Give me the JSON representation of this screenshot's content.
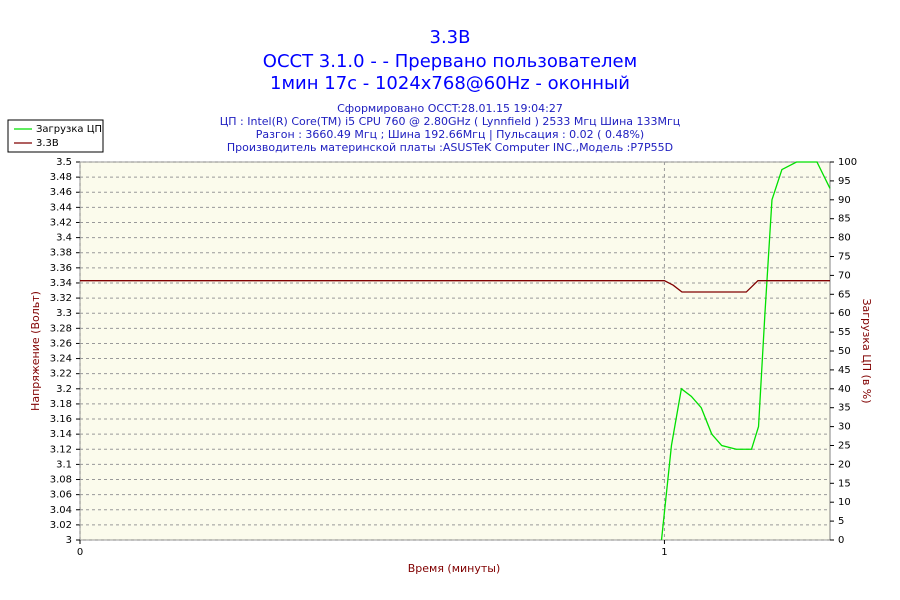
{
  "chart_data": {
    "type": "line",
    "title": "3.3В",
    "subtitle_lines": [
      "OCCT 3.1.0 -  - Прервано пользователем",
      "1мин 17с - 1024x768@60Hz - оконный"
    ],
    "info_lines": [
      "Сформировано OCCT:28.01.15 19:04:27",
      "ЦП : Intel(R) Core(TM) i5 CPU 760 @ 2.80GHz ( Lynnfield ) 2533 Мгц Шина 133Мгц",
      "Разгон : 3660.49 Мгц ; Шина 192.66Мгц | Пульсация : 0.02 ( 0.48%)",
      "Производитель материнской платы :ASUSTeK Computer INC.,Модель :P7P55D"
    ],
    "x_label": "Время (минуты)",
    "y_label": "Напряжение (Вольт)",
    "y2_label": "Загрузка ЦП (в %)",
    "xlim": [
      0,
      1.2833
    ],
    "xticks": [
      0,
      1
    ],
    "ylim": [
      3,
      3.5
    ],
    "yticks": [
      3,
      3.02,
      3.04,
      3.06,
      3.08,
      3.1,
      3.12,
      3.14,
      3.16,
      3.18,
      3.2,
      3.22,
      3.24,
      3.26,
      3.28,
      3.3,
      3.32,
      3.34,
      3.36,
      3.38,
      3.4,
      3.42,
      3.44,
      3.46,
      3.48,
      3.5
    ],
    "y2lim": [
      0,
      100
    ],
    "y2ticks": [
      0,
      5,
      10,
      15,
      20,
      25,
      30,
      35,
      40,
      45,
      50,
      55,
      60,
      65,
      70,
      75,
      80,
      85,
      90,
      95,
      100
    ],
    "grid": true,
    "legend": "top-left",
    "series": [
      {
        "name": "Загрузка ЦП",
        "color": "#00e000",
        "axis": "y2",
        "x": [
          0.995,
          1.012,
          1.029,
          1.046,
          1.063,
          1.081,
          1.098,
          1.123,
          1.149,
          1.161,
          1.172,
          1.184,
          1.201,
          1.226,
          1.261,
          1.2833
        ],
        "values": [
          0,
          25,
          40,
          38,
          35,
          28,
          25,
          24,
          24,
          30,
          60,
          90,
          98,
          100,
          100,
          93
        ]
      },
      {
        "name": "3.3В",
        "color": "#800000",
        "x": [
          0,
          1.0,
          1.015,
          1.03,
          1.14,
          1.16,
          1.2833
        ],
        "values": [
          3.343,
          3.343,
          3.337,
          3.328,
          3.328,
          3.343,
          3.343
        ]
      }
    ]
  }
}
